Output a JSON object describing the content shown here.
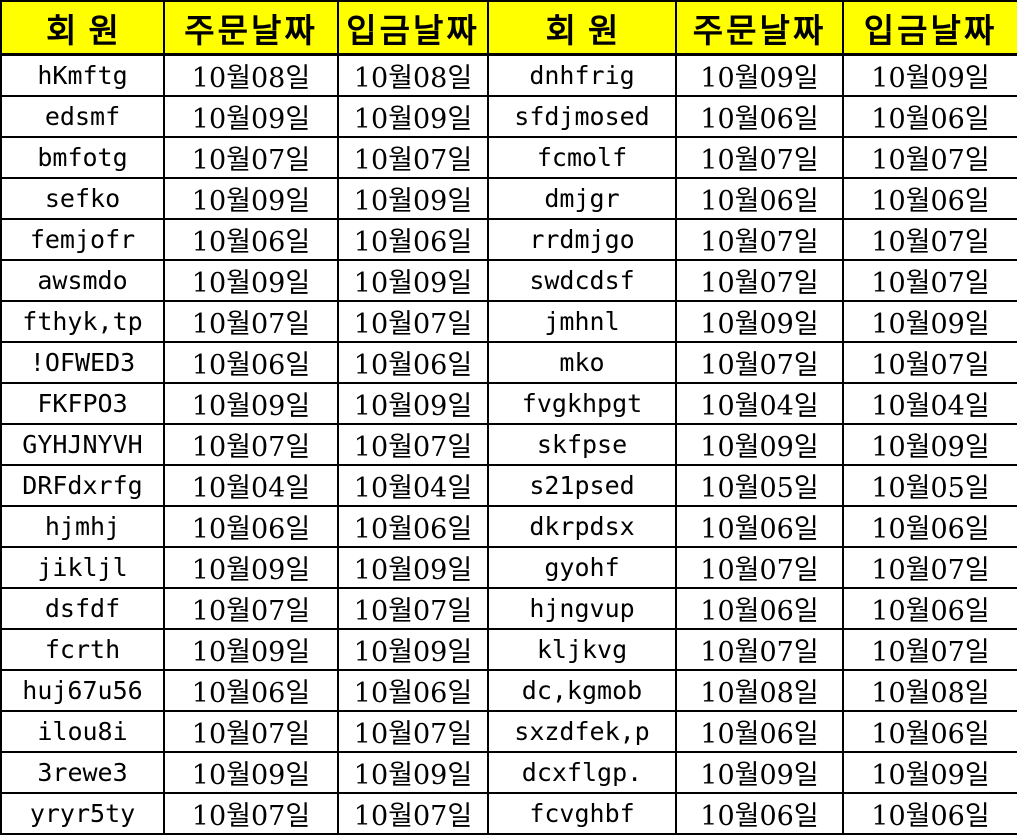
{
  "colors": {
    "header_bg": "#ffff00",
    "border": "#000000",
    "text": "#000000",
    "cell_bg": "#ffffff"
  },
  "table": {
    "header_labels": [
      "회원",
      "주문날짜",
      "입금날짜",
      "회원",
      "주문날짜",
      "입금날짜"
    ],
    "rows": [
      [
        "hKmftg",
        "10월08일",
        "10월08일",
        "dnhfrig",
        "10월09일",
        "10월09일"
      ],
      [
        "edsmf",
        "10월09일",
        "10월09일",
        "sfdjmosed",
        "10월06일",
        "10월06일"
      ],
      [
        "bmfotg",
        "10월07일",
        "10월07일",
        "fcmolf",
        "10월07일",
        "10월07일"
      ],
      [
        "sefko",
        "10월09일",
        "10월09일",
        "dmjgr",
        "10월06일",
        "10월06일"
      ],
      [
        "femjofr",
        "10월06일",
        "10월06일",
        "rrdmjgo",
        "10월07일",
        "10월07일"
      ],
      [
        "awsmdo",
        "10월09일",
        "10월09일",
        "swdcdsf",
        "10월07일",
        "10월07일"
      ],
      [
        "fthyk,tp",
        "10월07일",
        "10월07일",
        "jmhnl",
        "10월09일",
        "10월09일"
      ],
      [
        "!OFWED3",
        "10월06일",
        "10월06일",
        "mko",
        "10월07일",
        "10월07일"
      ],
      [
        "FKFPO3",
        "10월09일",
        "10월09일",
        "fvgkhpgt",
        "10월04일",
        "10월04일"
      ],
      [
        "GYHJNYVH",
        "10월07일",
        "10월07일",
        "skfpse",
        "10월09일",
        "10월09일"
      ],
      [
        "DRFdxrfg",
        "10월04일",
        "10월04일",
        "s21psed",
        "10월05일",
        "10월05일"
      ],
      [
        "hjmhj",
        "10월06일",
        "10월06일",
        "dkrpdsx",
        "10월06일",
        "10월06일"
      ],
      [
        "jikljl",
        "10월09일",
        "10월09일",
        "gyohf",
        "10월07일",
        "10월07일"
      ],
      [
        "dsfdf",
        "10월07일",
        "10월07일",
        "hjngvup",
        "10월06일",
        "10월06일"
      ],
      [
        "fcrth",
        "10월09일",
        "10월09일",
        "kljkvg",
        "10월07일",
        "10월07일"
      ],
      [
        "huj67u56",
        "10월06일",
        "10월06일",
        "dc,kgmob",
        "10월08일",
        "10월08일"
      ],
      [
        "ilou8i",
        "10월07일",
        "10월07일",
        "sxzdfek,p",
        "10월06일",
        "10월06일"
      ],
      [
        "3rewe3",
        "10월09일",
        "10월09일",
        "dcxflgp.",
        "10월09일",
        "10월09일"
      ],
      [
        "yryr5ty",
        "10월07일",
        "10월07일",
        "fcvghbf",
        "10월06일",
        "10월06일"
      ]
    ]
  }
}
